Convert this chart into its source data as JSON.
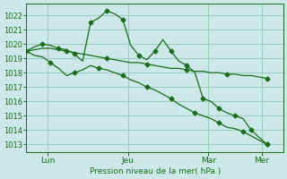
{
  "background_color": "#cce8e8",
  "grid_color": "#99ccbb",
  "line_color": "#1a6b1a",
  "marker": "D",
  "marker_size": 2.5,
  "ylabel": "Pression niveau de la mer( hPa )",
  "ylim": [
    1012.5,
    1022.8
  ],
  "yticks": [
    1013,
    1014,
    1015,
    1016,
    1017,
    1018,
    1019,
    1020,
    1021,
    1022
  ],
  "xtick_labels": [
    "Lun",
    "Jeu",
    "Mar",
    "Mer"
  ],
  "xtick_positions": [
    8,
    38,
    68,
    88
  ],
  "xlim": [
    0,
    96
  ],
  "series": [
    [
      1019.5,
      1019.8,
      1020.0,
      1019.9,
      1019.7,
      1019.6,
      1019.3,
      1018.8,
      1021.5,
      1021.8,
      1022.3,
      1022.1,
      1021.7,
      1019.9,
      1019.2,
      1018.9,
      1019.5,
      1020.3,
      1019.5,
      1018.8,
      1018.5,
      1018.0,
      1016.2,
      1016.0,
      1015.5,
      1015.2,
      1015.0,
      1014.8,
      1014.0,
      1013.5,
      1013.0
    ],
    [
      1019.5,
      1019.2,
      1019.1,
      1018.7,
      1018.3,
      1017.8,
      1018.0,
      1018.2,
      1018.5,
      1018.3,
      1018.2,
      1018.0,
      1017.8,
      1017.5,
      1017.3,
      1017.0,
      1016.8,
      1016.5,
      1016.2,
      1015.8,
      1015.5,
      1015.2,
      1015.0,
      1014.8,
      1014.5,
      1014.2,
      1014.1,
      1013.9,
      1013.6,
      1013.3,
      1013.0
    ],
    [
      1019.5,
      1019.6,
      1019.7,
      1019.7,
      1019.6,
      1019.5,
      1019.4,
      1019.3,
      1019.2,
      1019.1,
      1019.0,
      1018.9,
      1018.8,
      1018.7,
      1018.7,
      1018.6,
      1018.5,
      1018.4,
      1018.3,
      1018.3,
      1018.2,
      1018.1,
      1018.1,
      1018.0,
      1018.0,
      1017.9,
      1017.9,
      1017.8,
      1017.8,
      1017.7,
      1017.6
    ]
  ],
  "markevery": [
    2,
    3,
    5
  ]
}
